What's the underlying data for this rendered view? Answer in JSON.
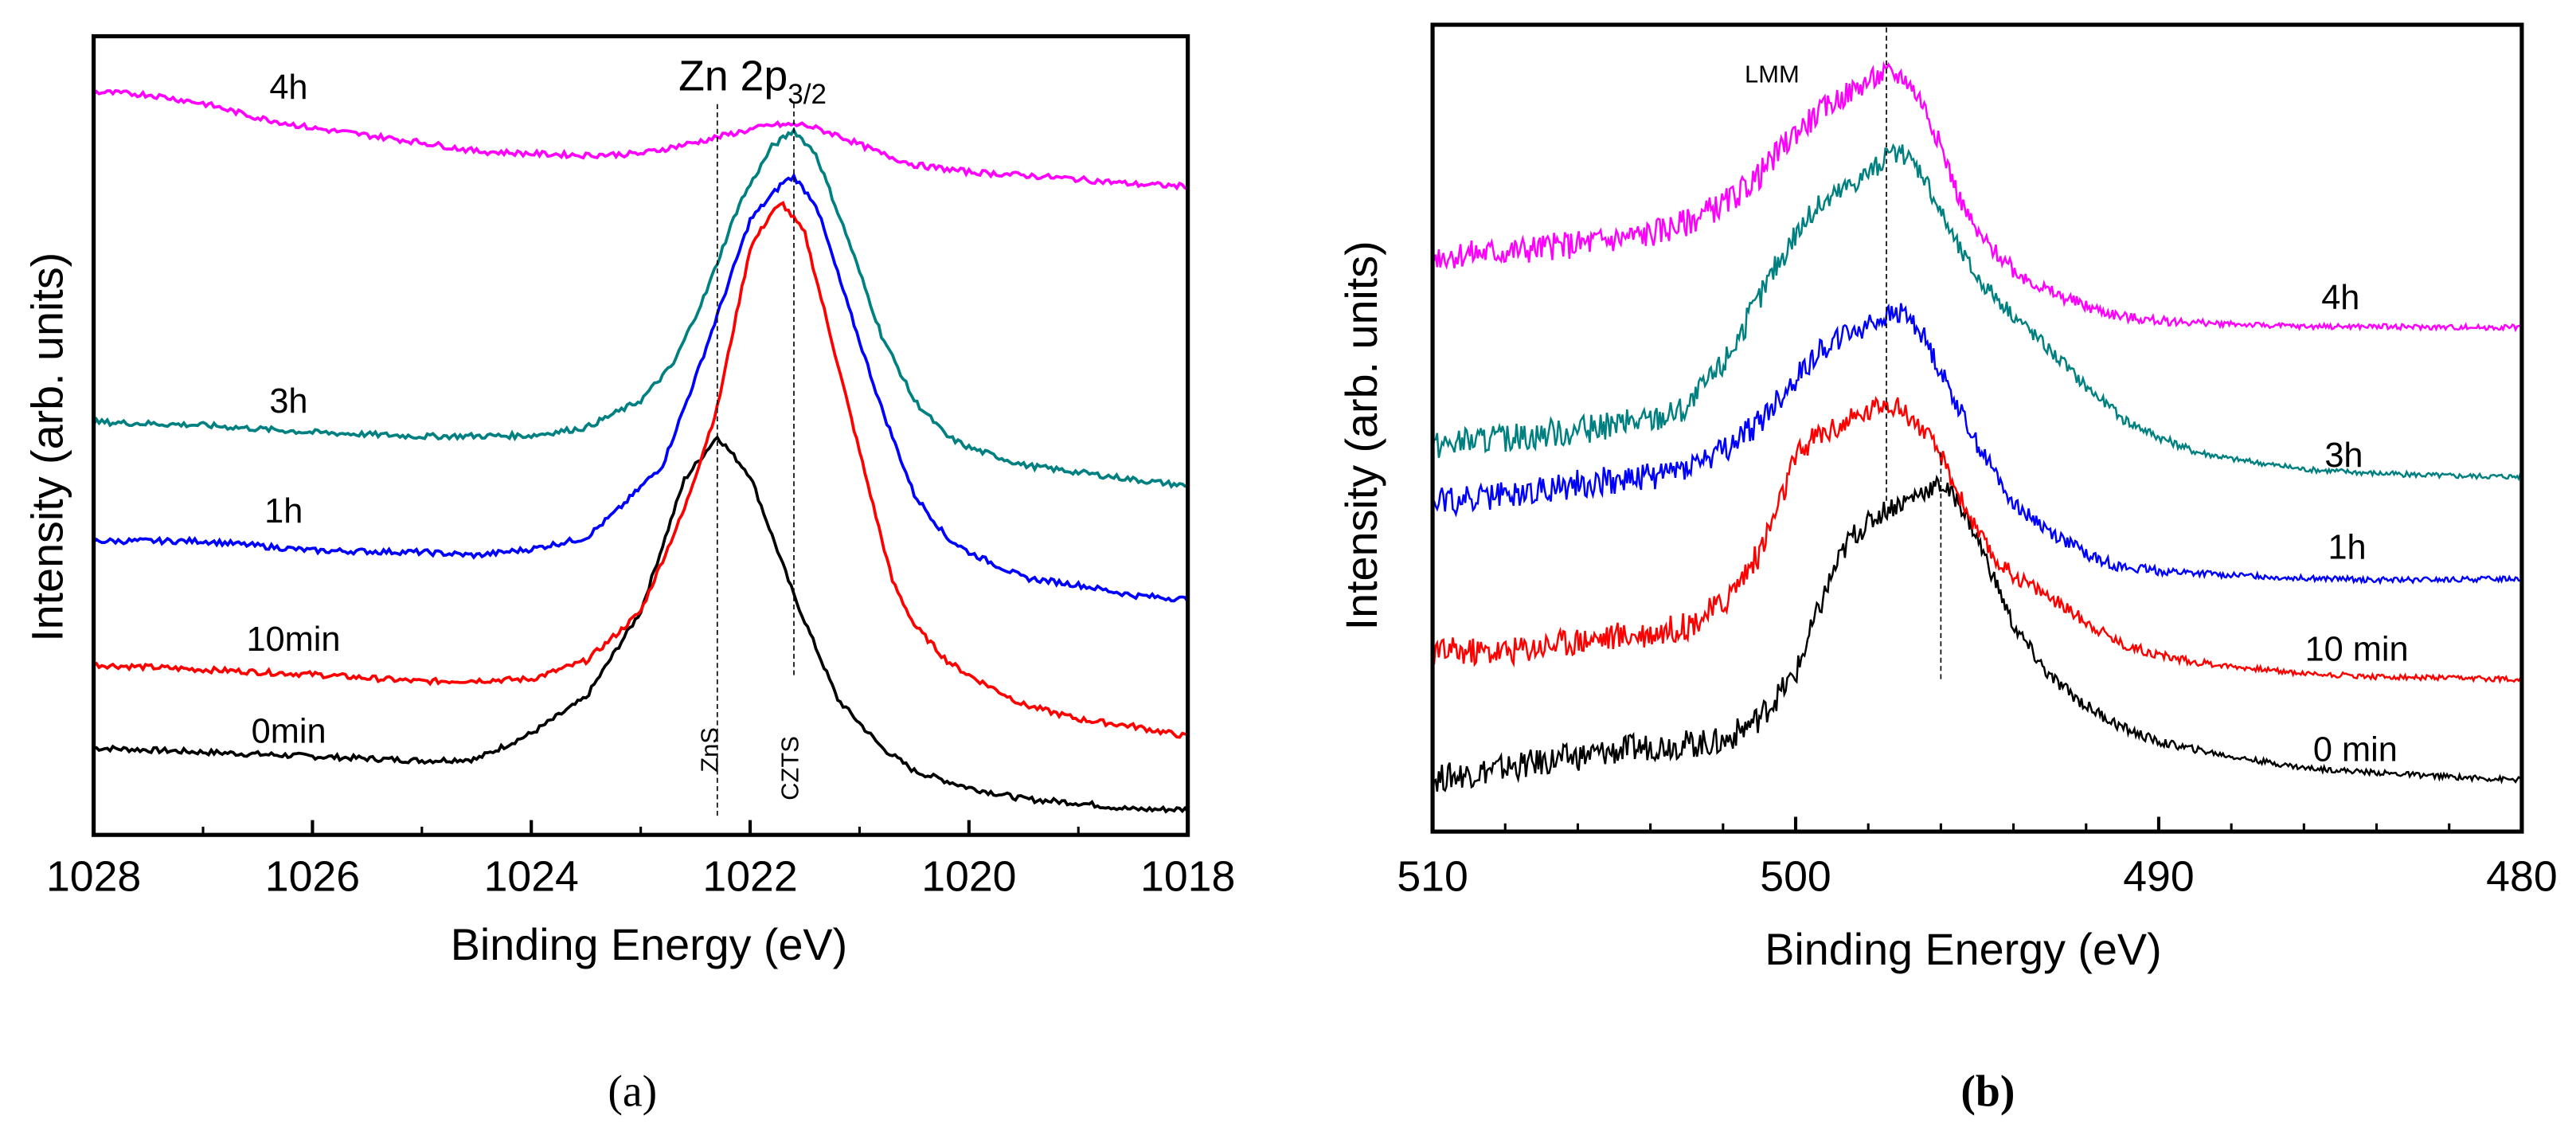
{
  "chart_data": [
    {
      "type": "line",
      "panel_label": "(a)",
      "title_main": "Zn 2p",
      "title_sub": "3/2",
      "xlabel": "Binding Energy (eV)",
      "ylabel": "Intensity (arb. units)",
      "xlim": [
        1028,
        1018
      ],
      "ylim": [
        0,
        100
      ],
      "xticks": [
        "1028",
        "1026",
        "1024",
        "1022",
        "1020",
        "1018"
      ],
      "xtick_values": [
        1028,
        1026,
        1024,
        1022,
        1020,
        1018
      ],
      "minor_xtick_values": [
        1027,
        1025,
        1023,
        1021,
        1019
      ],
      "grid": false,
      "annotations": [
        {
          "text": "ZnS",
          "x": 1022.3,
          "line_y": [
            2.4,
            91.8
          ]
        },
        {
          "text": "CZTS",
          "x": 1021.6,
          "line_y": [
            20,
            91.8
          ]
        }
      ],
      "series": [
        {
          "name": "0min",
          "color": "#000000",
          "x": [
            1028,
            1025,
            1024.5,
            1024,
            1023.5,
            1023,
            1022.6,
            1022.3,
            1022,
            1021.6,
            1021.2,
            1020.8,
            1020.5,
            1020,
            1019.5,
            1019,
            1018.5,
            1018
          ],
          "y": [
            10.9,
            9.3,
            9.5,
            12.7,
            17.2,
            28,
            44.5,
            49.9,
            45,
            30,
            17,
            11,
            8,
            5.9,
            4.5,
            4,
            3.2,
            3.2
          ]
        },
        {
          "name": "10min",
          "color": "#ff0000",
          "x": [
            1028,
            1026,
            1025,
            1024,
            1023.5,
            1023.2,
            1023,
            1022.6,
            1022.3,
            1022,
            1021.8,
            1021.7,
            1021.5,
            1021.2,
            1021,
            1020.7,
            1020.5,
            1020.2,
            1020,
            1019.5,
            1019,
            1018.5,
            1018
          ],
          "y": [
            21.3,
            20.1,
            19.2,
            19.5,
            21.8,
            25.4,
            28,
            40.8,
            53.5,
            73.5,
            78,
            79,
            75.3,
            59,
            48,
            31.8,
            26.3,
            21.8,
            20,
            16.3,
            14.5,
            13.6,
            12.3
          ]
        },
        {
          "name": "1h",
          "color": "#0000ff",
          "x": [
            1028,
            1027,
            1026,
            1025,
            1024.5,
            1024,
            1023.5,
            1023.2,
            1022.8,
            1022.5,
            1022.2,
            1022,
            1021.7,
            1021.6,
            1021.4,
            1021.1,
            1020.8,
            1020.5,
            1020.2,
            1020,
            1019.5,
            1019,
            1018.5,
            1018
          ],
          "y": [
            36.8,
            36.8,
            35.6,
            35.4,
            35,
            35.8,
            37.2,
            40.8,
            46.3,
            57.2,
            69,
            77,
            81.7,
            82.4,
            79,
            66,
            53.5,
            42.6,
            37.2,
            35.4,
            32.2,
            31.3,
            30,
            29.5
          ]
        },
        {
          "name": "3h",
          "color": "#008080",
          "x": [
            1028,
            1027,
            1026,
            1025,
            1024,
            1023.5,
            1023,
            1022.7,
            1022.4,
            1022.1,
            1021.8,
            1021.6,
            1021.4,
            1021.1,
            1020.8,
            1020.5,
            1020.2,
            1020,
            1019.5,
            1019,
            1018.5,
            1018
          ],
          "y": [
            51.7,
            51.3,
            50.4,
            49.9,
            50,
            51,
            54.4,
            59,
            68,
            79,
            86.2,
            88.2,
            85.3,
            74.4,
            62.6,
            54.4,
            49.9,
            48.5,
            46.3,
            45.4,
            44.5,
            43.7
          ]
        },
        {
          "name": "4h",
          "color": "#ff00ff",
          "x": [
            1028,
            1027.5,
            1027,
            1026.5,
            1026,
            1025.5,
            1025,
            1024.5,
            1024,
            1023.5,
            1023,
            1022.5,
            1022.2,
            1021.8,
            1021.5,
            1021.2,
            1020.8,
            1020.5,
            1020,
            1019.5,
            1019,
            1018.5,
            1018
          ],
          "y": [
            93,
            92.7,
            91.6,
            89.8,
            88.5,
            87.6,
            86.7,
            85.6,
            85.3,
            85.1,
            85.3,
            86.7,
            87.7,
            88.9,
            88.9,
            87.6,
            85.3,
            83.9,
            83,
            82.6,
            82.1,
            81.5,
            81.2
          ]
        }
      ]
    },
    {
      "type": "line",
      "panel_label": "(b)",
      "xlabel": "Binding Energy (eV)",
      "ylabel": "Intensity (arb. units)",
      "xlim": [
        510,
        480
      ],
      "ylim": [
        0,
        100
      ],
      "xticks": [
        "510",
        "500",
        "490",
        "480"
      ],
      "xtick_values": [
        510,
        500,
        490,
        480
      ],
      "minor_xtick_values": [
        508,
        506,
        504,
        502,
        498,
        496,
        494,
        492,
        488,
        486,
        484,
        482
      ],
      "grid": false,
      "annotations": [
        {
          "text": "LMM",
          "x": 497.5,
          "line_y": [
            41,
            100
          ]
        },
        {
          "text": "",
          "x": 496,
          "line_y": [
            18.9,
            47
          ]
        }
      ],
      "series": [
        {
          "name": "0 min",
          "color": "#000000",
          "x": [
            510,
            508,
            506,
            504,
            502,
            501,
            500,
            499.5,
            499,
            498.5,
            498,
            497.5,
            497,
            496.5,
            496,
            495.5,
            495,
            494.5,
            494,
            493,
            492,
            491,
            490,
            489,
            488,
            486,
            484,
            482,
            480
          ],
          "y": [
            6.5,
            7.9,
            9.3,
            10.6,
            11.1,
            14.1,
            19.5,
            25.8,
            31.8,
            36.4,
            38.2,
            40,
            40.9,
            42.2,
            43,
            40.9,
            36.4,
            31,
            25.5,
            19.2,
            15.6,
            12.9,
            11.1,
            10.2,
            9.3,
            7.9,
            7.3,
            6.8,
            6.4
          ]
        },
        {
          "name": "10 min",
          "color": "#ff0000",
          "x": [
            510,
            508,
            506,
            504,
            503,
            502,
            501,
            500.5,
            500,
            499.5,
            499,
            498,
            497.5,
            497,
            496.5,
            496,
            495.5,
            495,
            494.5,
            494,
            493,
            492,
            491,
            490,
            489,
            488,
            486,
            484,
            482,
            480
          ],
          "y": [
            22.3,
            22.3,
            23.7,
            24.6,
            25.5,
            28.2,
            34.5,
            40,
            46.2,
            48.9,
            49.8,
            52,
            53.4,
            52,
            49.8,
            46.6,
            41.7,
            37.2,
            33.6,
            31.8,
            29.1,
            26,
            23.2,
            21.9,
            21,
            20.5,
            19.6,
            19.2,
            19,
            18.9
          ]
        },
        {
          "name": "1h",
          "color": "#0000ff",
          "x": [
            510,
            508,
            506,
            504,
            503,
            502,
            501,
            500.5,
            500,
            499.5,
            499,
            498,
            497.5,
            497,
            496.5,
            496,
            495.5,
            495,
            494.5,
            494,
            493,
            492,
            491,
            490,
            488,
            486,
            484,
            482,
            480
          ],
          "y": [
            40.8,
            41.7,
            43.1,
            44,
            45.3,
            47.1,
            50.7,
            53.4,
            56.1,
            58.9,
            60.7,
            62.9,
            63.8,
            64.3,
            61.6,
            57,
            52.5,
            48,
            44.4,
            40.8,
            37.2,
            34.5,
            32.7,
            32.3,
            31.8,
            31.4,
            31.2,
            31.2,
            31.4
          ]
        },
        {
          "name": "3h",
          "color": "#008080",
          "x": [
            510,
            508,
            506,
            504,
            503,
            502,
            501,
            500.5,
            500,
            499.5,
            499,
            498,
            497.5,
            497,
            496.5,
            496,
            495.5,
            495,
            494,
            493,
            492,
            491,
            490,
            489,
            488,
            486,
            484,
            482,
            480
          ],
          "y": [
            47.9,
            48.8,
            49.7,
            51,
            52.4,
            57.9,
            66,
            70.5,
            74.1,
            76.8,
            78.6,
            81.7,
            83.5,
            84,
            81.7,
            76.8,
            72.3,
            68.7,
            64.1,
            59.7,
            55.2,
            51.2,
            48.9,
            47.1,
            46.2,
            44.9,
            44.4,
            44.1,
            44
          ]
        },
        {
          "name": "4h",
          "color": "#ff00ff",
          "x": [
            510,
            508,
            506,
            504,
            503,
            502,
            501,
            500.5,
            500,
            499,
            498,
            497.5,
            497,
            496.5,
            496,
            495.5,
            495,
            494,
            493,
            492,
            491,
            490,
            488,
            486,
            484,
            482,
            480
          ],
          "y": [
            71.4,
            71.9,
            72.8,
            74.1,
            75.5,
            77.7,
            81.3,
            84,
            86.7,
            90.3,
            93,
            94,
            93.5,
            90.3,
            84.9,
            78.6,
            74.1,
            69.6,
            66.9,
            65.1,
            63.8,
            63.3,
            62.9,
            62.6,
            62.6,
            62.5,
            62.5
          ]
        }
      ]
    }
  ]
}
